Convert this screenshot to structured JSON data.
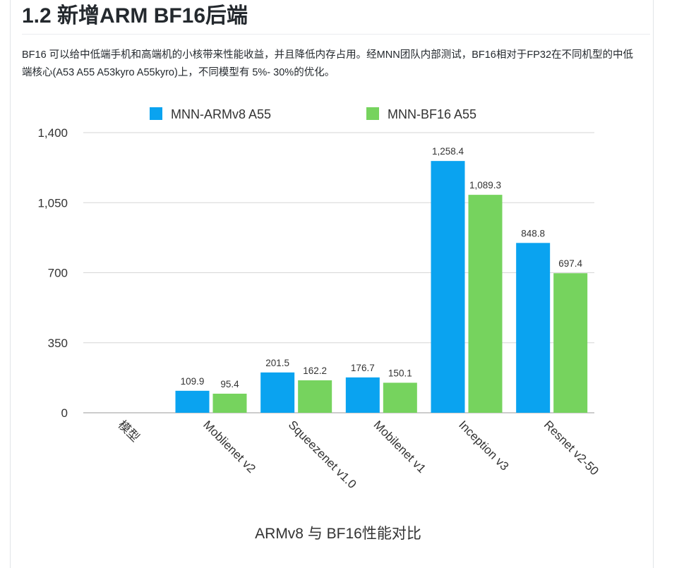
{
  "heading": "1.2 新增ARM BF16后端",
  "paragraph": "BF16 可以给中低端手机和高端机的小核带来性能收益，并且降低内存占用。经MNN团队内部测试，BF16相对于FP32在不同机型的中低端核心(A53 A55 A53kyro A55kyro)上，不同模型有 5%- 30%的优化。",
  "chart_data": {
    "type": "bar",
    "title": "ARMv8 与 BF16性能对比",
    "xlabel": "",
    "ylabel": "",
    "categories": [
      "模型",
      "Moblienet v2",
      "Squeezenet v1.0",
      "Mobilenet v1",
      "Inception v3",
      "Resnet v2-50"
    ],
    "series": [
      {
        "name": "MNN-ARMv8 A55",
        "color": "#0aa3f0",
        "values": [
          null,
          109.9,
          201.5,
          176.7,
          1258.4,
          848.8
        ],
        "labels": [
          "",
          "109.9",
          "201.5",
          "176.7",
          "1,258.4",
          "848.8"
        ]
      },
      {
        "name": "MNN-BF16 A55",
        "color": "#76d35e",
        "values": [
          null,
          95.4,
          162.2,
          150.1,
          1089.3,
          697.4
        ],
        "labels": [
          "",
          "95.4",
          "162.2",
          "150.1",
          "1,089.3",
          "697.4"
        ]
      }
    ],
    "ylim": [
      0,
      1400
    ],
    "yticks": [
      0,
      350,
      700,
      1050,
      1400
    ],
    "ytick_labels": [
      "0",
      "350",
      "700",
      "1,050",
      "1,400"
    ],
    "grid": true,
    "legend": "top"
  }
}
